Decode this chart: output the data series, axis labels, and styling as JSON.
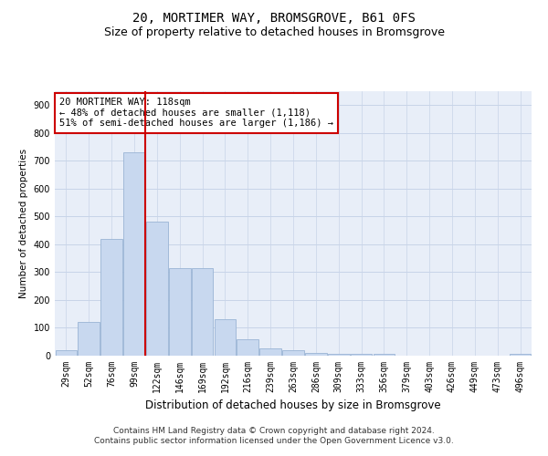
{
  "title": "20, MORTIMER WAY, BROMSGROVE, B61 0FS",
  "subtitle": "Size of property relative to detached houses in Bromsgrove",
  "xlabel": "Distribution of detached houses by size in Bromsgrove",
  "ylabel": "Number of detached properties",
  "categories": [
    "29sqm",
    "52sqm",
    "76sqm",
    "99sqm",
    "122sqm",
    "146sqm",
    "169sqm",
    "192sqm",
    "216sqm",
    "239sqm",
    "263sqm",
    "286sqm",
    "309sqm",
    "333sqm",
    "356sqm",
    "379sqm",
    "403sqm",
    "426sqm",
    "449sqm",
    "473sqm",
    "496sqm"
  ],
  "values": [
    20,
    120,
    420,
    730,
    480,
    315,
    315,
    130,
    60,
    25,
    20,
    10,
    8,
    5,
    8,
    0,
    0,
    0,
    0,
    0,
    8
  ],
  "bar_color": "#c8d8ef",
  "bar_edgecolor": "#9ab4d4",
  "vline_x": 4.0,
  "vline_color": "#cc0000",
  "annotation_line1": "20 MORTIMER WAY: 118sqm",
  "annotation_line2": "← 48% of detached houses are smaller (1,118)",
  "annotation_line3": "51% of semi-detached houses are larger (1,186) →",
  "annotation_box_color": "#cc0000",
  "ylim": [
    0,
    950
  ],
  "yticks": [
    0,
    100,
    200,
    300,
    400,
    500,
    600,
    700,
    800,
    900
  ],
  "grid_color": "#c8d4e8",
  "plot_bg_color": "#e8eef8",
  "footer_line1": "Contains HM Land Registry data © Crown copyright and database right 2024.",
  "footer_line2": "Contains public sector information licensed under the Open Government Licence v3.0.",
  "title_fontsize": 10,
  "subtitle_fontsize": 9,
  "xlabel_fontsize": 8.5,
  "ylabel_fontsize": 7.5,
  "tick_fontsize": 7,
  "annotation_fontsize": 7.5,
  "footer_fontsize": 6.5
}
